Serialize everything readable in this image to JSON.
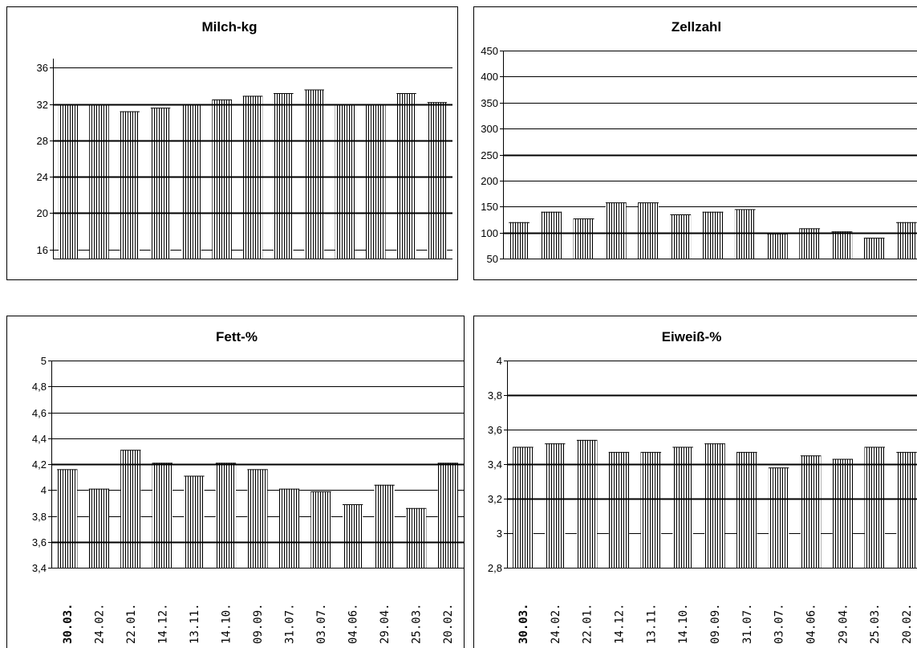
{
  "chart_data": [
    {
      "type": "bar",
      "title": "Milch-kg",
      "ylim": [
        15,
        37
      ],
      "yticks": [
        16,
        20,
        24,
        28,
        32,
        36
      ],
      "ytick_labels": [
        "16",
        "20",
        "24",
        "28",
        "32",
        "36"
      ],
      "grid_major": [
        20,
        24,
        28,
        32
      ],
      "values": [
        32.0,
        32.0,
        31.2,
        31.6,
        32.0,
        32.5,
        32.9,
        33.2,
        33.6,
        32.0,
        32.0,
        33.2,
        32.2
      ]
    },
    {
      "type": "bar",
      "title": "Zellzahl",
      "ylim": [
        50,
        450
      ],
      "yticks": [
        50,
        100,
        150,
        200,
        250,
        300,
        350,
        400,
        450
      ],
      "ytick_labels": [
        "50",
        "100",
        "150",
        "200",
        "250",
        "300",
        "350",
        "400",
        "450"
      ],
      "grid_major": [
        100,
        250
      ],
      "values": [
        120,
        140,
        127,
        158,
        158,
        135,
        140,
        145,
        98,
        108,
        102,
        90,
        120
      ]
    },
    {
      "type": "bar",
      "title": "Fett-%",
      "ylim": [
        3.4,
        5.0
      ],
      "yticks": [
        3.4,
        3.6,
        3.8,
        4.0,
        4.2,
        4.4,
        4.6,
        4.8,
        5.0
      ],
      "ytick_labels": [
        "3,4",
        "3,6",
        "3,8",
        "4",
        "4,2",
        "4,4",
        "4,6",
        "4,8",
        "5"
      ],
      "grid_major": [
        3.6,
        4.2
      ],
      "values": [
        4.16,
        4.01,
        4.31,
        4.21,
        4.11,
        4.21,
        4.16,
        4.01,
        3.99,
        3.89,
        4.04,
        3.86,
        4.21
      ],
      "categories": [
        "30.03.",
        "24.02.",
        "22.01.",
        "14.12.",
        "13.11.",
        "14.10.",
        "09.09.",
        "31.07.",
        "03.07.",
        "04.06.",
        "29.04.",
        "25.03.",
        "20.02."
      ]
    },
    {
      "type": "bar",
      "title": "Eiweiß-%",
      "ylim": [
        2.8,
        4.0
      ],
      "yticks": [
        2.8,
        3.0,
        3.2,
        3.4,
        3.6,
        3.8,
        4.0
      ],
      "ytick_labels": [
        "2,8",
        "3",
        "3,2",
        "3,4",
        "3,6",
        "3,8",
        "4"
      ],
      "grid_major": [
        3.2,
        3.4,
        3.8
      ],
      "values": [
        3.5,
        3.52,
        3.54,
        3.47,
        3.47,
        3.5,
        3.52,
        3.47,
        3.38,
        3.45,
        3.43,
        3.5,
        3.47
      ],
      "categories": [
        "30.03.",
        "24.02.",
        "22.01.",
        "14.12.",
        "13.11.",
        "14.10.",
        "09.09.",
        "31.07.",
        "03.07.",
        "04.06.",
        "29.04.",
        "25.03.",
        "20.02."
      ]
    }
  ]
}
